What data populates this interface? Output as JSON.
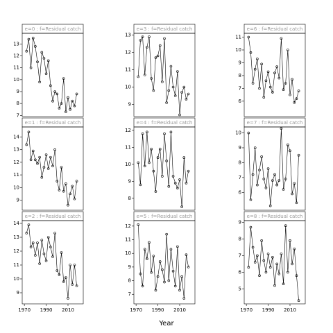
{
  "xlabel": "Year",
  "chart_data": [
    {
      "type": "line",
      "title": "e=0 : f=Residual catch",
      "x": [
        1972,
        1974,
        1976,
        1978,
        1980,
        1982,
        1984,
        1986,
        1988,
        1990,
        1992,
        1994,
        1996,
        1998,
        2000,
        2002,
        2004,
        2006,
        2008,
        2010,
        2012,
        2014,
        2016,
        2018
      ],
      "values": [
        12.4,
        13.4,
        11.0,
        13.5,
        12.8,
        11.5,
        9.8,
        12.3,
        11.8,
        10.5,
        11.6,
        9.5,
        8.2,
        9.0,
        8.8,
        7.6,
        8.0,
        10.1,
        7.3,
        8.5,
        7.5,
        8.2,
        7.8,
        8.8
      ],
      "xlim": [
        1968,
        2024
      ],
      "ylim": [
        6.9,
        13.9
      ],
      "yticks": [
        7,
        8,
        9,
        10,
        11,
        12,
        13
      ]
    },
    {
      "type": "line",
      "title": "e=1 : f=Residual catch",
      "x": [
        1972,
        1974,
        1976,
        1978,
        1980,
        1982,
        1984,
        1986,
        1988,
        1990,
        1992,
        1994,
        1996,
        1998,
        2000,
        2002,
        2004,
        2006,
        2008,
        2010,
        2012,
        2014,
        2016,
        2018
      ],
      "values": [
        13.4,
        14.4,
        12.2,
        12.9,
        12.2,
        11.9,
        12.4,
        10.8,
        11.6,
        12.6,
        11.5,
        12.4,
        11.7,
        13.0,
        10.5,
        9.8,
        11.6,
        9.7,
        10.3,
        8.6,
        9.5,
        10.1,
        9.1,
        10.5
      ],
      "xlim": [
        1968,
        2024
      ],
      "ylim": [
        8.2,
        14.8
      ],
      "yticks": [
        9,
        10,
        11,
        12,
        13,
        14
      ]
    },
    {
      "type": "line",
      "title": "e=2 : f=Residual catch",
      "x": [
        1972,
        1974,
        1976,
        1978,
        1980,
        1982,
        1984,
        1986,
        1988,
        1990,
        1992,
        1994,
        1996,
        1998,
        2000,
        2002,
        2004,
        2006,
        2008,
        2010,
        2012,
        2014,
        2016,
        2018
      ],
      "values": [
        13.3,
        13.9,
        12.3,
        12.6,
        11.7,
        12.6,
        11.1,
        12.8,
        11.8,
        11.3,
        13.0,
        12.3,
        11.6,
        13.3,
        10.6,
        10.3,
        11.9,
        9.8,
        10.1,
        8.6,
        11.0,
        9.6,
        11.0,
        9.5
      ],
      "xlim": [
        1968,
        2024
      ],
      "ylim": [
        8.2,
        14.2
      ],
      "yticks": [
        9,
        10,
        11,
        12,
        13,
        14
      ],
      "xticks": [
        1970,
        1990,
        2010
      ]
    },
    {
      "type": "line",
      "title": "e=3 : f=Residual catch",
      "x": [
        1972,
        1974,
        1976,
        1978,
        1980,
        1982,
        1984,
        1986,
        1988,
        1990,
        1992,
        1994,
        1996,
        1998,
        2000,
        2002,
        2004,
        2006,
        2008,
        2010,
        2012,
        2014,
        2016,
        2018
      ],
      "values": [
        10.6,
        12.7,
        12.9,
        10.7,
        12.3,
        12.9,
        10.5,
        9.8,
        11.7,
        11.8,
        12.4,
        10.3,
        12.8,
        9.1,
        9.8,
        11.2,
        10.0,
        9.5,
        10.9,
        8.4,
        9.7,
        10.0,
        9.3,
        9.6
      ],
      "xlim": [
        1968,
        2024
      ],
      "ylim": [
        8.3,
        13.1
      ],
      "yticks": [
        9,
        10,
        11,
        12,
        13
      ]
    },
    {
      "type": "line",
      "title": "e=4 : f=Residual catch",
      "x": [
        1972,
        1974,
        1976,
        1978,
        1980,
        1982,
        1984,
        1986,
        1988,
        1990,
        1992,
        1994,
        1996,
        1998,
        2000,
        2002,
        2004,
        2006,
        2008,
        2010,
        2012,
        2014,
        2016,
        2018
      ],
      "values": [
        10.1,
        8.8,
        11.8,
        9.9,
        11.9,
        10.1,
        10.9,
        9.6,
        8.4,
        10.4,
        10.9,
        9.3,
        11.8,
        10.2,
        8.7,
        11.9,
        9.3,
        8.9,
        8.6,
        9.1,
        7.5,
        10.4,
        8.9,
        9.6
      ],
      "xlim": [
        1968,
        2024
      ],
      "ylim": [
        7.3,
        12.2
      ],
      "yticks": [
        8,
        9,
        10,
        11,
        12
      ]
    },
    {
      "type": "line",
      "title": "e=5 : f=Residual catch",
      "x": [
        1972,
        1974,
        1976,
        1978,
        1980,
        1982,
        1984,
        1986,
        1988,
        1990,
        1992,
        1994,
        1996,
        1998,
        2000,
        2002,
        2004,
        2006,
        2008,
        2010,
        2012,
        2014,
        2016,
        2018
      ],
      "values": [
        12.1,
        8.5,
        7.6,
        10.3,
        9.6,
        10.8,
        8.6,
        9.8,
        7.3,
        8.3,
        9.4,
        8.8,
        7.9,
        11.4,
        8.0,
        10.3,
        8.7,
        7.6,
        10.5,
        7.3,
        8.3,
        6.7,
        9.9,
        9.0
      ],
      "xlim": [
        1968,
        2024
      ],
      "ylim": [
        6.3,
        12.4
      ],
      "yticks": [
        7,
        8,
        9,
        10,
        11,
        12
      ],
      "xticks": [
        1970,
        1990,
        2010
      ]
    },
    {
      "type": "line",
      "title": "e=6 : f=Residual catch",
      "x": [
        1972,
        1974,
        1976,
        1978,
        1980,
        1982,
        1984,
        1986,
        1988,
        1990,
        1992,
        1994,
        1996,
        1998,
        2000,
        2002,
        2004,
        2006,
        2008,
        2010,
        2012,
        2014,
        2016,
        2018
      ],
      "values": [
        11.0,
        9.8,
        7.4,
        8.5,
        9.3,
        7.0,
        8.9,
        6.3,
        7.6,
        8.3,
        7.1,
        6.7,
        8.2,
        8.7,
        7.8,
        10.9,
        6.9,
        7.4,
        10.0,
        6.5,
        7.7,
        5.9,
        6.2,
        6.8
      ],
      "xlim": [
        1968,
        2024
      ],
      "ylim": [
        4.8,
        11.3
      ],
      "yticks": [
        6,
        7,
        8,
        9,
        10,
        11
      ]
    },
    {
      "type": "line",
      "title": "e=7 : f=Residual catch",
      "x": [
        1972,
        1974,
        1976,
        1978,
        1980,
        1982,
        1984,
        1986,
        1988,
        1990,
        1992,
        1994,
        1996,
        1998,
        2000,
        2002,
        2004,
        2006,
        2008,
        2010,
        2012,
        2014,
        2016,
        2018
      ],
      "values": [
        10.0,
        5.5,
        7.2,
        9.0,
        6.5,
        7.5,
        8.4,
        6.9,
        6.3,
        7.6,
        5.1,
        6.8,
        7.2,
        6.5,
        6.8,
        10.3,
        6.2,
        6.9,
        9.2,
        8.8,
        5.9,
        6.6,
        5.3,
        8.5
      ],
      "xlim": [
        1968,
        2024
      ],
      "ylim": [
        4.8,
        10.4
      ],
      "yticks": [
        6,
        7,
        8,
        9,
        10
      ]
    },
    {
      "type": "line",
      "title": "e=8 : f=Residual catch",
      "x": [
        1972,
        1974,
        1976,
        1978,
        1980,
        1982,
        1984,
        1986,
        1988,
        1990,
        1992,
        1994,
        1996,
        1998,
        2000,
        2002,
        2004,
        2006,
        2008,
        2010,
        2012,
        2014,
        2016,
        2018
      ],
      "values": [
        6.3,
        8.7,
        7.5,
        6.6,
        7.0,
        5.8,
        7.9,
        6.7,
        6.0,
        7.1,
        6.3,
        6.9,
        5.2,
        6.5,
        5.9,
        7.1,
        5.3,
        8.8,
        6.0,
        7.9,
        6.5,
        7.4,
        5.8,
        4.3
      ],
      "xlim": [
        1968,
        2024
      ],
      "ylim": [
        4.1,
        9.1
      ],
      "yticks": [
        5,
        6,
        7,
        8,
        9
      ],
      "xticks": [
        1970,
        1990,
        2010
      ]
    }
  ]
}
